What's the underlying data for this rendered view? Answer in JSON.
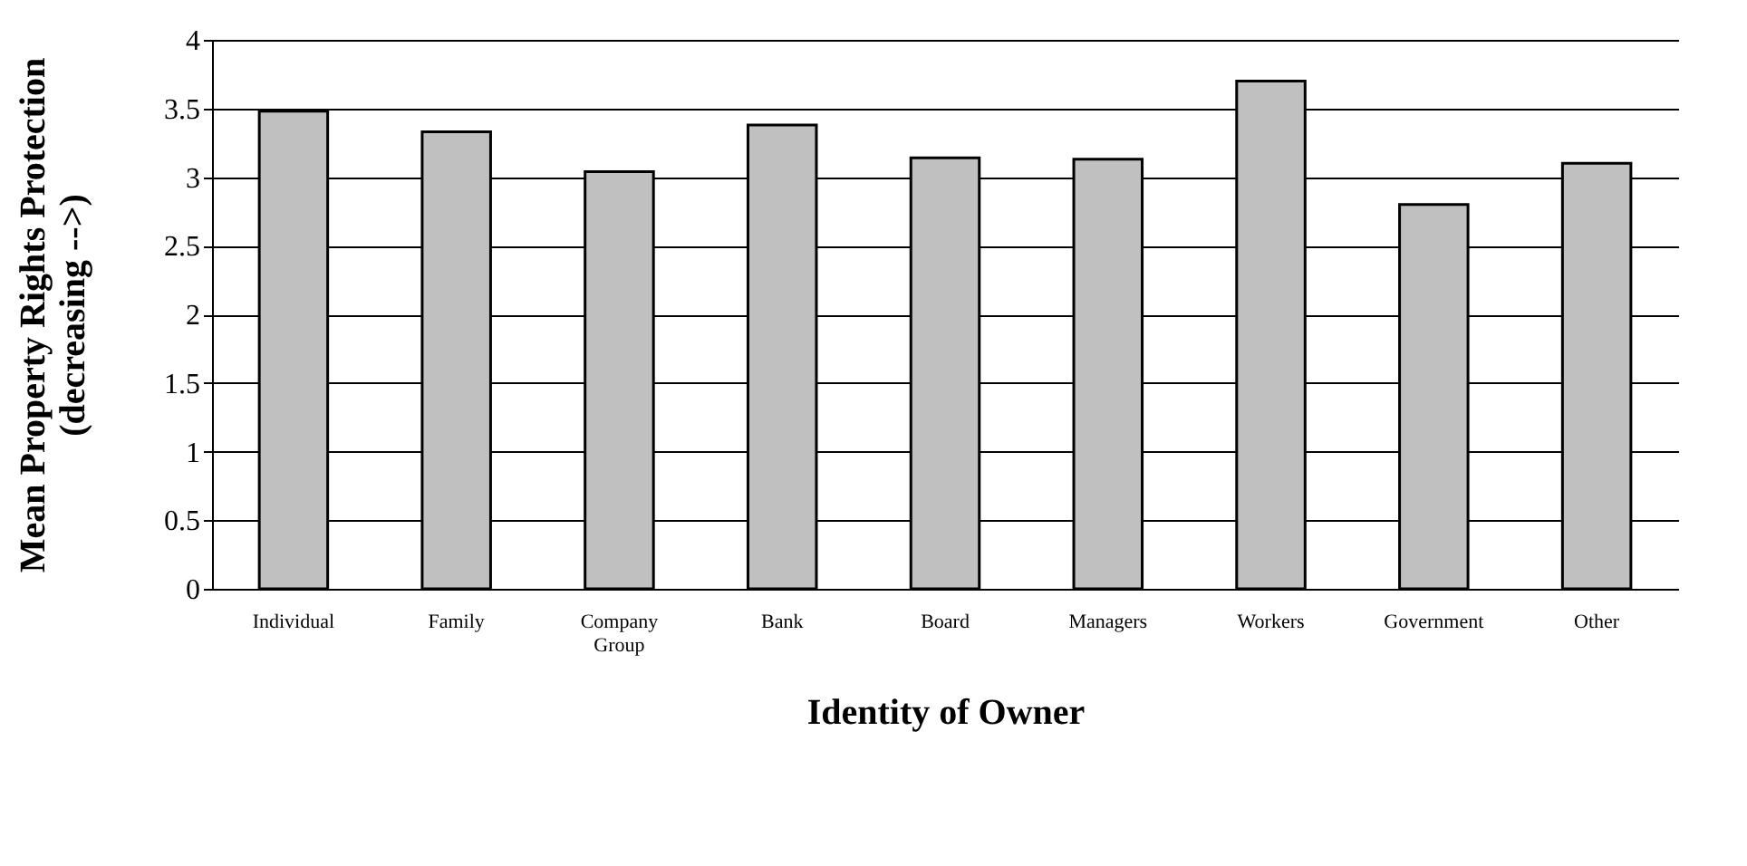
{
  "chart_data": {
    "type": "bar",
    "categories": [
      "Individual",
      "Family",
      "Company Group",
      "Bank",
      "Board",
      "Managers",
      "Workers",
      "Government",
      "Other"
    ],
    "values": [
      3.48,
      3.33,
      3.04,
      3.38,
      3.14,
      3.13,
      3.7,
      2.8,
      3.1
    ],
    "color": "#c0c0c0",
    "xlabel": "Identity of Owner",
    "ylabel": "Mean Property Rights Protection\n(decreasing -->)",
    "ylim": [
      0,
      4
    ],
    "yticks": [
      0,
      0.5,
      1,
      1.5,
      2,
      2.5,
      3,
      3.5,
      4
    ],
    "grid": "y"
  }
}
